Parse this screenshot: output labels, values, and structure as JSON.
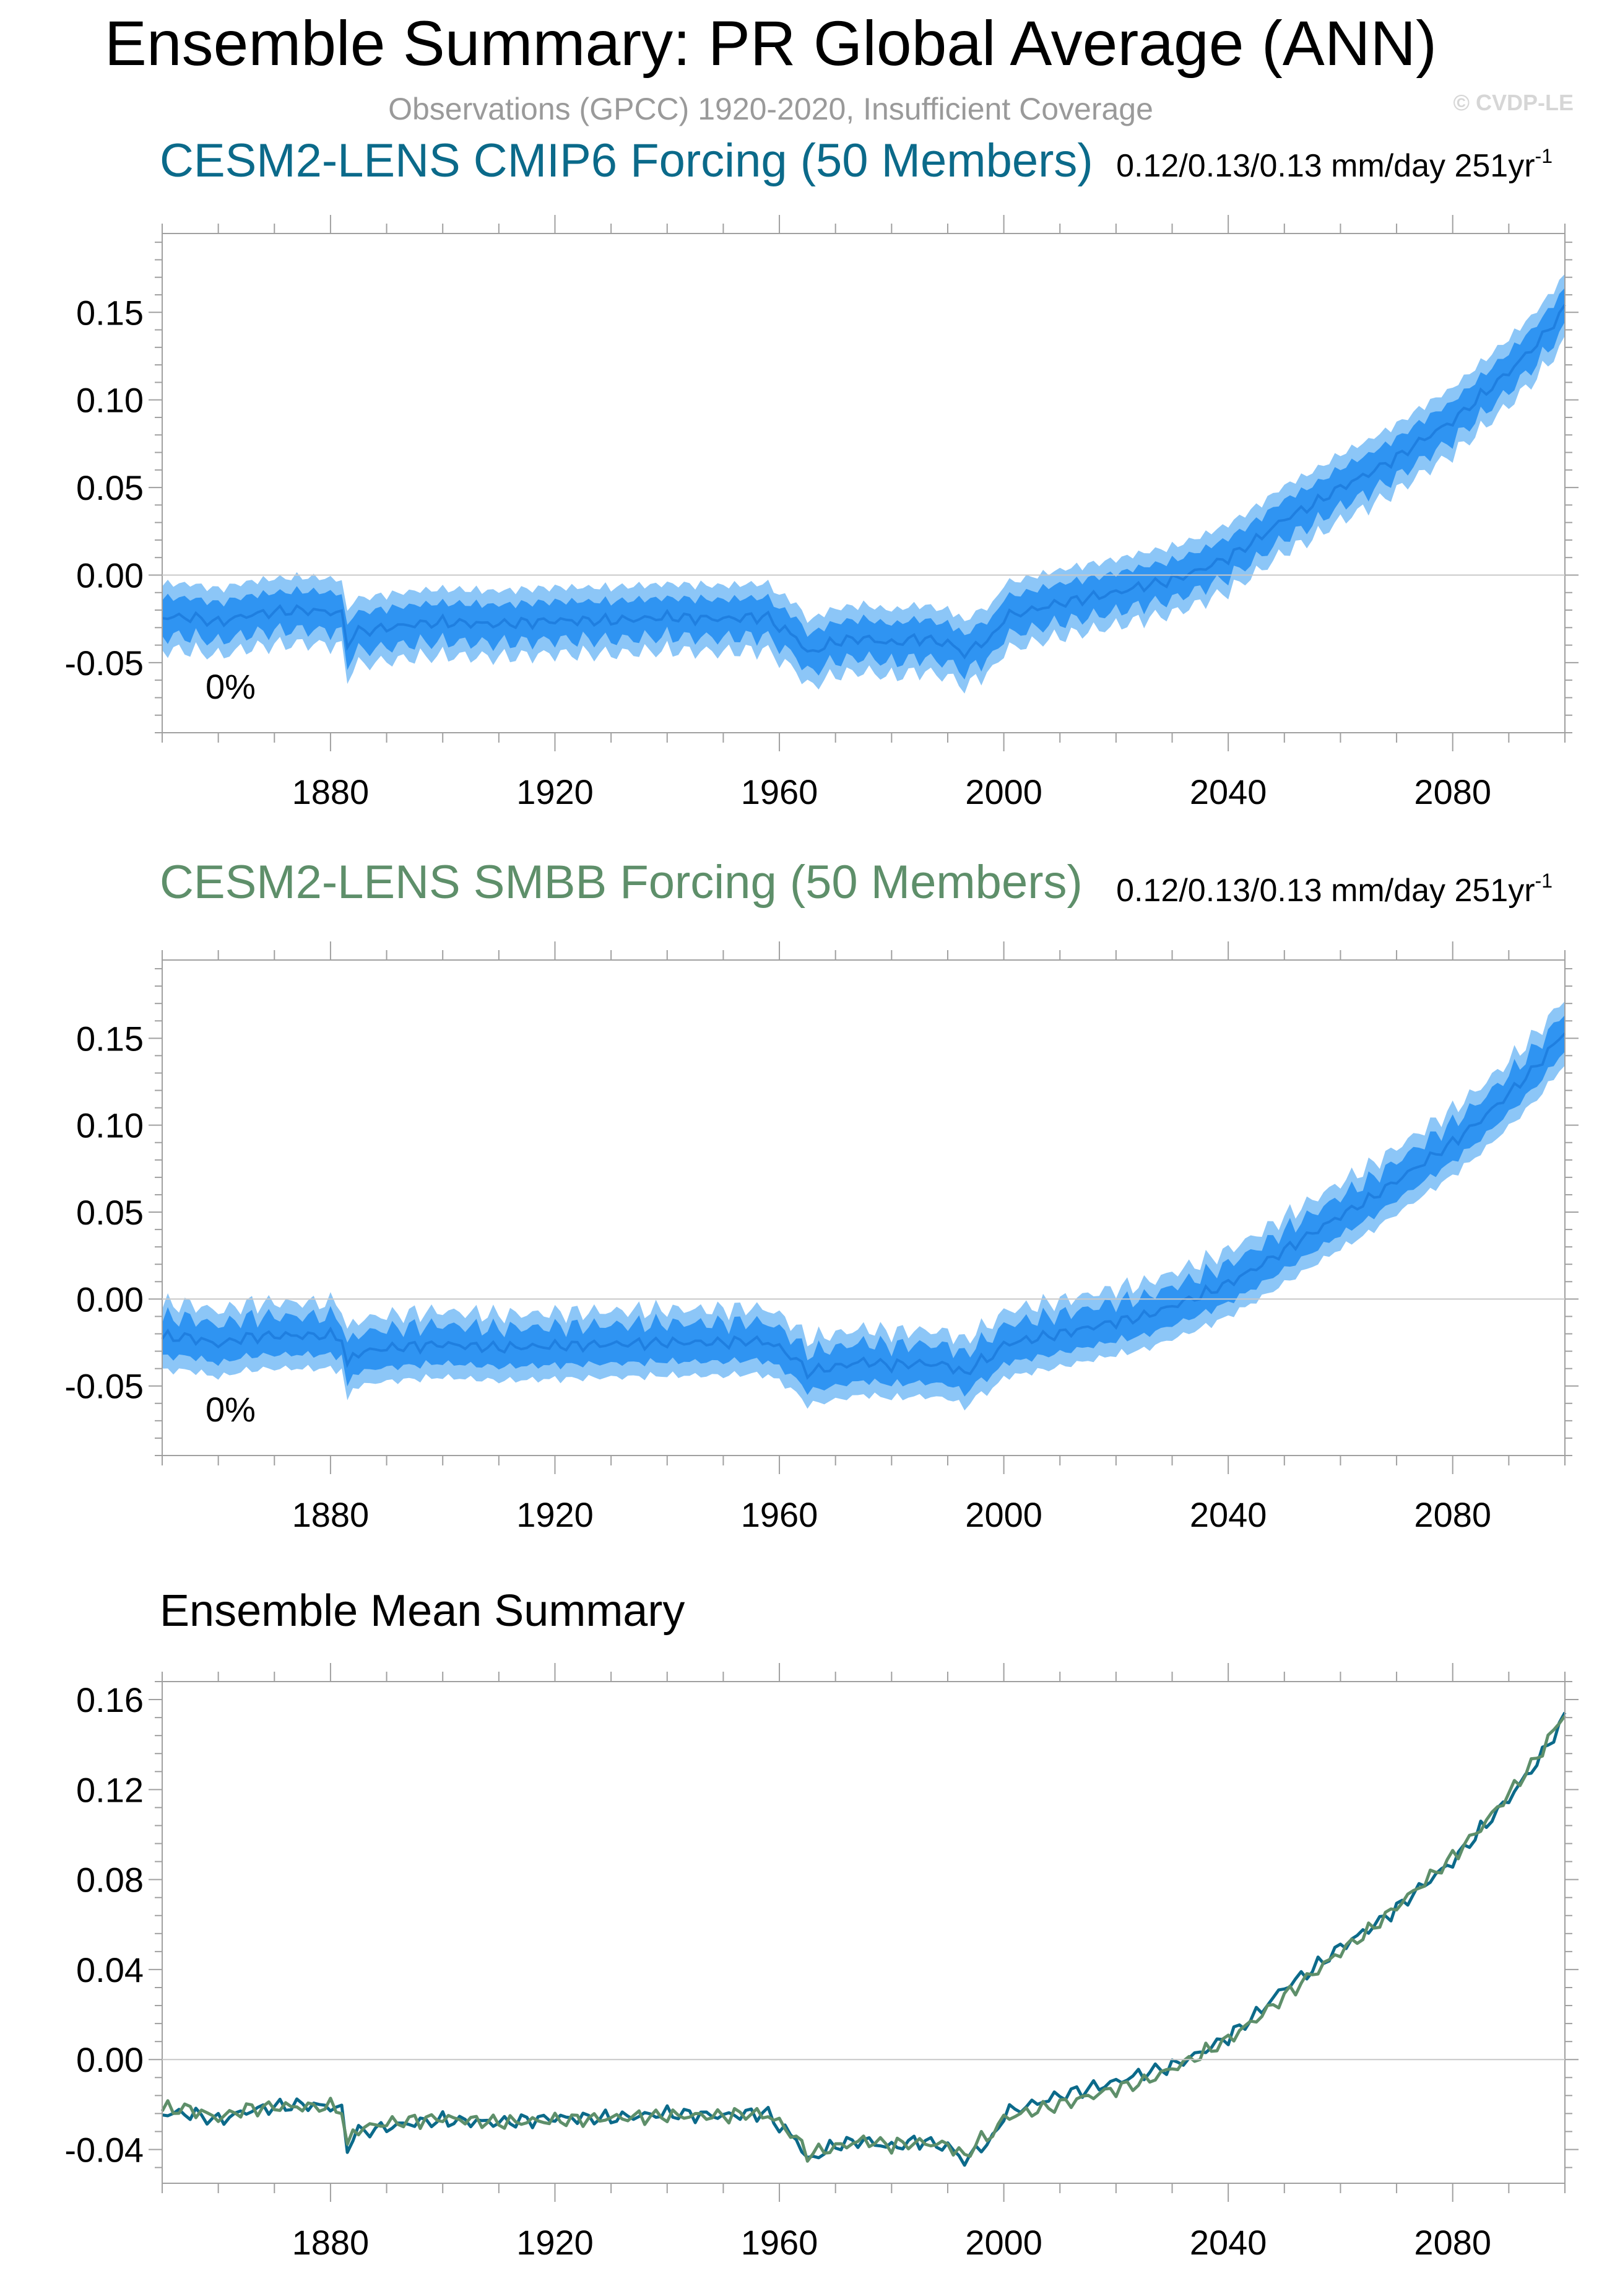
{
  "figure": {
    "title": "Ensemble Summary: PR Global Average (ANN)",
    "subtitle": "Observations (GPCC) 1920-2020, Insufficient Coverage",
    "watermark": "© CVDP-LE"
  },
  "colors": {
    "cmip6": "#0b6a8a",
    "smbb": "#5e8f6a",
    "band_outer": "#8cc6f7",
    "band_inner": "#2f94f2",
    "mean_line": "#1f7fe0",
    "axis": "#a0a0a0",
    "zero_line": "#c8c8c8",
    "watermark": "#d6d6d6",
    "subtitle": "#9a9a9a"
  },
  "chart_data": [
    {
      "type": "area",
      "id": "cmip6",
      "title": "CESM2-LENS CMIP6 Forcing (50 Members)",
      "stats": "0.12/0.13/0.13 mm/day 251yr",
      "stats_sup": "-1",
      "annotation": "0%",
      "xlim": [
        1850,
        2100
      ],
      "ylim": [
        -0.09,
        0.195
      ],
      "x_ticks": [
        1880,
        1920,
        1960,
        2000,
        2040,
        2080
      ],
      "x_tick_labels": [
        "1880",
        "1920",
        "1960",
        "2000",
        "2040",
        "2080"
      ],
      "y_ticks": [
        -0.05,
        0.0,
        0.05,
        0.1,
        0.15
      ],
      "y_tick_labels": [
        "-0.05",
        "0.00",
        "0.05",
        "0.10",
        "0.15"
      ],
      "series_knots": {
        "x": [
          1850,
          1855,
          1860,
          1865,
          1870,
          1875,
          1880,
          1882,
          1883,
          1884,
          1888,
          1895,
          1900,
          1910,
          1920,
          1930,
          1940,
          1950,
          1955,
          1958,
          1960,
          1963,
          1965,
          1970,
          1975,
          1980,
          1985,
          1990,
          1992,
          1993,
          1995,
          1998,
          2000,
          2010,
          2020,
          2025,
          2030,
          2035,
          2040,
          2045,
          2050,
          2055,
          2060,
          2065,
          2070,
          2075,
          2080,
          2085,
          2090,
          2095,
          2100
        ],
        "mean": [
          -0.024,
          -0.024,
          -0.027,
          -0.023,
          -0.021,
          -0.02,
          -0.021,
          -0.022,
          -0.041,
          -0.033,
          -0.031,
          -0.028,
          -0.027,
          -0.028,
          -0.026,
          -0.026,
          -0.024,
          -0.025,
          -0.024,
          -0.024,
          -0.03,
          -0.035,
          -0.045,
          -0.038,
          -0.036,
          -0.039,
          -0.036,
          -0.039,
          -0.042,
          -0.046,
          -0.04,
          -0.036,
          -0.024,
          -0.016,
          -0.01,
          -0.006,
          -0.003,
          0.003,
          0.01,
          0.02,
          0.032,
          0.04,
          0.05,
          0.058,
          0.067,
          0.078,
          0.088,
          0.102,
          0.116,
          0.132,
          0.152
        ],
        "inner_half": 0.011,
        "outer_half": 0.019
      },
      "noise_amp": 0.004
    },
    {
      "type": "area",
      "id": "smbb",
      "title": "CESM2-LENS SMBB Forcing (50 Members)",
      "stats": "0.12/0.13/0.13 mm/day 251yr",
      "stats_sup": "-1",
      "annotation": "0%",
      "xlim": [
        1850,
        2100
      ],
      "ylim": [
        -0.09,
        0.195
      ],
      "x_ticks": [
        1880,
        1920,
        1960,
        2000,
        2040,
        2080
      ],
      "x_tick_labels": [
        "1880",
        "1920",
        "1960",
        "2000",
        "2040",
        "2080"
      ],
      "y_ticks": [
        -0.05,
        0.0,
        0.05,
        0.1,
        0.15
      ],
      "y_tick_labels": [
        "-0.05",
        "0.00",
        "0.05",
        "0.10",
        "0.15"
      ],
      "series_knots": {
        "x": [
          1850,
          1855,
          1860,
          1865,
          1870,
          1875,
          1880,
          1882,
          1883,
          1884,
          1888,
          1895,
          1900,
          1910,
          1920,
          1930,
          1940,
          1950,
          1955,
          1958,
          1960,
          1963,
          1965,
          1970,
          1975,
          1980,
          1985,
          1990,
          1992,
          1993,
          1995,
          1998,
          2000,
          2010,
          2020,
          2025,
          2030,
          2035,
          2040,
          2045,
          2050,
          2055,
          2060,
          2065,
          2070,
          2075,
          2080,
          2085,
          2090,
          2095,
          2100
        ],
        "mean": [
          -0.022,
          -0.022,
          -0.026,
          -0.022,
          -0.021,
          -0.021,
          -0.021,
          -0.022,
          -0.04,
          -0.032,
          -0.029,
          -0.027,
          -0.026,
          -0.028,
          -0.027,
          -0.026,
          -0.025,
          -0.025,
          -0.024,
          -0.025,
          -0.028,
          -0.035,
          -0.042,
          -0.039,
          -0.036,
          -0.038,
          -0.037,
          -0.038,
          -0.041,
          -0.044,
          -0.037,
          -0.033,
          -0.026,
          -0.02,
          -0.013,
          -0.01,
          -0.004,
          0.002,
          0.009,
          0.018,
          0.028,
          0.038,
          0.048,
          0.057,
          0.068,
          0.079,
          0.09,
          0.103,
          0.118,
          0.134,
          0.154
        ],
        "inner_half": 0.011,
        "outer_half": 0.019
      },
      "noise_amp": 0.004
    },
    {
      "type": "line",
      "id": "ensemble-mean",
      "title": "Ensemble Mean Summary",
      "xlim": [
        1850,
        2100
      ],
      "ylim": [
        -0.055,
        0.168
      ],
      "x_ticks": [
        1880,
        1920,
        1960,
        2000,
        2040,
        2080
      ],
      "x_tick_labels": [
        "1880",
        "1920",
        "1960",
        "2000",
        "2040",
        "2080"
      ],
      "y_ticks": [
        -0.04,
        0.0,
        0.04,
        0.08,
        0.12,
        0.16
      ],
      "y_tick_labels": [
        "-0.04",
        "0.00",
        "0.04",
        "0.08",
        "0.12",
        "0.16"
      ],
      "series": [
        {
          "name": "CESM2-LENS CMIP6 Forcing",
          "source": "cmip6",
          "color_key": "cmip6"
        },
        {
          "name": "CESM2-LENS SMBB Forcing",
          "source": "smbb",
          "color_key": "smbb"
        }
      ]
    }
  ]
}
